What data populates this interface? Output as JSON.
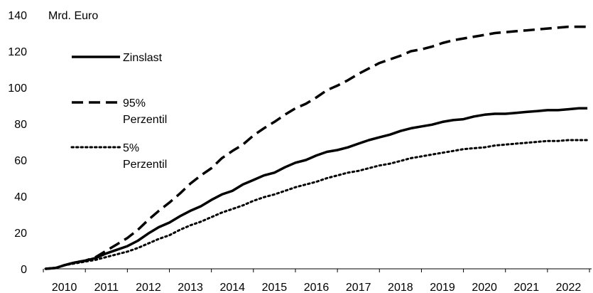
{
  "chart_data": {
    "type": "line",
    "unit_label": "Mrd. Euro",
    "title": "",
    "xlabel": "",
    "ylabel": "",
    "ylim": [
      0,
      140
    ],
    "yticks": [
      0,
      20,
      40,
      60,
      80,
      100,
      120,
      140
    ],
    "xlim": [
      2009.55,
      2022.55
    ],
    "xticks": [
      "2010",
      "2011",
      "2012",
      "2013",
      "2014",
      "2015",
      "2016",
      "2017",
      "2018",
      "2019",
      "2020",
      "2021",
      "2022"
    ],
    "grid": false,
    "legend_position": "top-left",
    "series": [
      {
        "name": "Zinslast",
        "style": "solid",
        "color": "#000000",
        "x": [
          2009.55,
          2009.8,
          2010.0,
          2010.25,
          2010.5,
          2010.75,
          2011.0,
          2011.25,
          2011.5,
          2011.75,
          2012.0,
          2012.25,
          2012.5,
          2012.75,
          2013.0,
          2013.25,
          2013.5,
          2013.75,
          2014.0,
          2014.25,
          2014.5,
          2014.75,
          2015.0,
          2015.25,
          2015.5,
          2015.75,
          2016.0,
          2016.25,
          2016.5,
          2016.75,
          2017.0,
          2017.25,
          2017.5,
          2017.75,
          2018.0,
          2018.25,
          2018.5,
          2018.75,
          2019.0,
          2019.25,
          2019.5,
          2019.75,
          2020.0,
          2020.25,
          2020.5,
          2020.75,
          2021.0,
          2021.25,
          2021.5,
          2021.75,
          2022.0,
          2022.25,
          2022.45
        ],
        "values": [
          0.0,
          0.5,
          2.0,
          3.5,
          4.5,
          6.0,
          8.5,
          10.5,
          12.5,
          15.5,
          19.5,
          23.0,
          25.5,
          29.0,
          32.0,
          34.5,
          38.0,
          41.0,
          43.0,
          46.5,
          49.0,
          51.5,
          53.0,
          56.0,
          58.5,
          60.0,
          62.5,
          64.5,
          65.5,
          67.0,
          69.0,
          71.0,
          72.5,
          74.0,
          76.0,
          77.5,
          78.5,
          79.5,
          81.0,
          82.0,
          82.5,
          84.0,
          85.0,
          85.5,
          85.5,
          86.0,
          86.5,
          87.0,
          87.5,
          87.5,
          88.0,
          88.5,
          88.5
        ]
      },
      {
        "name": "95% Perzentil",
        "style": "dashed",
        "color": "#000000",
        "x": [
          2009.55,
          2009.8,
          2010.0,
          2010.25,
          2010.5,
          2010.75,
          2011.0,
          2011.25,
          2011.5,
          2011.75,
          2012.0,
          2012.25,
          2012.5,
          2012.75,
          2013.0,
          2013.25,
          2013.5,
          2013.75,
          2014.0,
          2014.25,
          2014.5,
          2014.75,
          2015.0,
          2015.25,
          2015.5,
          2015.75,
          2016.0,
          2016.25,
          2016.5,
          2016.75,
          2017.0,
          2017.25,
          2017.5,
          2017.75,
          2018.0,
          2018.25,
          2018.5,
          2018.75,
          2019.0,
          2019.25,
          2019.5,
          2019.75,
          2020.0,
          2020.25,
          2020.5,
          2020.75,
          2021.0,
          2021.25,
          2021.5,
          2021.75,
          2022.0,
          2022.25,
          2022.45
        ],
        "values": [
          0.0,
          0.5,
          2.0,
          3.5,
          4.5,
          6.5,
          10.0,
          13.5,
          17.0,
          21.5,
          27.0,
          32.0,
          36.5,
          41.5,
          47.0,
          51.5,
          55.5,
          61.0,
          65.0,
          68.5,
          73.5,
          77.5,
          81.0,
          85.0,
          88.5,
          91.0,
          94.5,
          98.5,
          101.0,
          104.0,
          107.5,
          110.5,
          113.5,
          115.5,
          117.5,
          120.0,
          121.0,
          122.5,
          124.5,
          126.0,
          127.0,
          128.0,
          129.0,
          130.0,
          130.5,
          131.0,
          131.5,
          132.0,
          132.5,
          133.0,
          133.5,
          133.5,
          133.5
        ]
      },
      {
        "name": "5% Perzentil",
        "style": "dotted",
        "color": "#000000",
        "x": [
          2009.55,
          2009.8,
          2010.0,
          2010.25,
          2010.5,
          2010.75,
          2011.0,
          2011.25,
          2011.5,
          2011.75,
          2012.0,
          2012.25,
          2012.5,
          2012.75,
          2013.0,
          2013.25,
          2013.5,
          2013.75,
          2014.0,
          2014.25,
          2014.5,
          2014.75,
          2015.0,
          2015.25,
          2015.5,
          2015.75,
          2016.0,
          2016.25,
          2016.5,
          2016.75,
          2017.0,
          2017.25,
          2017.5,
          2017.75,
          2018.0,
          2018.25,
          2018.5,
          2018.75,
          2019.0,
          2019.25,
          2019.5,
          2019.75,
          2020.0,
          2020.25,
          2020.5,
          2020.75,
          2021.0,
          2021.25,
          2021.5,
          2021.75,
          2022.0,
          2022.25,
          2022.45
        ],
        "values": [
          0.0,
          0.5,
          2.0,
          3.0,
          4.0,
          5.0,
          6.5,
          8.0,
          9.5,
          11.5,
          14.0,
          16.5,
          18.5,
          21.5,
          24.0,
          26.0,
          28.5,
          31.0,
          33.0,
          35.0,
          37.5,
          39.5,
          41.0,
          43.0,
          45.0,
          46.5,
          48.0,
          50.0,
          51.5,
          53.0,
          54.0,
          55.5,
          57.0,
          58.0,
          59.5,
          61.0,
          62.0,
          63.0,
          64.0,
          65.0,
          66.0,
          66.5,
          67.0,
          68.0,
          68.5,
          69.0,
          69.5,
          70.0,
          70.5,
          70.5,
          71.0,
          71.0,
          71.0
        ]
      }
    ]
  }
}
